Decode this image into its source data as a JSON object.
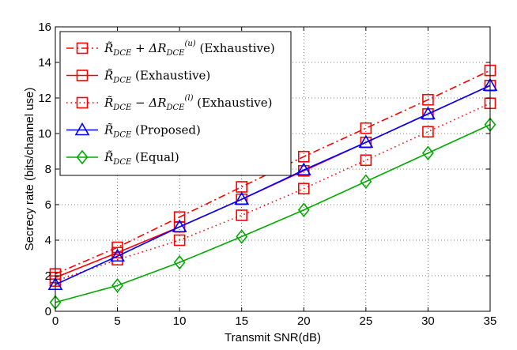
{
  "chart_data": {
    "type": "line",
    "xlabel": "Transmit SNR(dB)",
    "ylabel": "Secrecy rate (bits/channel use)",
    "x": [
      0,
      5,
      10,
      15,
      20,
      25,
      30,
      35
    ],
    "xlim": [
      0,
      35
    ],
    "ylim": [
      0,
      16
    ],
    "xticks": [
      "0",
      "5",
      "10",
      "15",
      "20",
      "25",
      "30",
      "35"
    ],
    "yticks": [
      "0",
      "2",
      "4",
      "6",
      "8",
      "10",
      "12",
      "14",
      "16"
    ],
    "grid": true,
    "legend_position": "top-left",
    "series": [
      {
        "name": "R̃_DCE + ΔR_DCE^(u) (Exhaustive)",
        "label_main": "R̃",
        "label_sub": "DCE",
        "label_op": " + ΔR",
        "label_sub2": "DCE",
        "label_sup": "(u)",
        "label_tail": " (Exhaustive)",
        "color": "#ff0000",
        "dash": "dashdot",
        "marker": "square",
        "values": [
          2.1,
          3.6,
          5.3,
          7.0,
          8.7,
          10.3,
          11.9,
          13.55
        ]
      },
      {
        "name": "R̃_DCE (Exhaustive)",
        "label_main": "R̃",
        "label_sub": "DCE",
        "label_tail": " (Exhaustive)",
        "color": "#ff0000",
        "dash": "solid",
        "marker": "square",
        "values": [
          1.9,
          3.3,
          4.75,
          6.3,
          7.9,
          9.5,
          11.1,
          12.7
        ]
      },
      {
        "name": "R̃_DCE − ΔR_DCE^(l) (Exhaustive)",
        "label_main": "R̃",
        "label_sub": "DCE",
        "label_op": " − ΔR",
        "label_sub2": "DCE",
        "label_sup": "(l)",
        "label_tail": " (Exhaustive)",
        "color": "#ff0000",
        "dash": "dotted",
        "marker": "square",
        "values": [
          1.7,
          2.9,
          4.0,
          5.4,
          6.9,
          8.5,
          10.1,
          11.7
        ]
      },
      {
        "name": "R̃_DCE (Proposed)",
        "label_main": "R̃",
        "label_sub": "DCE",
        "label_tail": " (Proposed)",
        "color": "#0000ff",
        "dash": "solid",
        "marker": "triangle",
        "values": [
          1.5,
          3.1,
          4.75,
          6.3,
          7.95,
          9.5,
          11.1,
          12.7
        ]
      },
      {
        "name": "R̃_DCE (Equal)",
        "label_main": "R̃",
        "label_sub": "DCE",
        "label_tail": " (Equal)",
        "color": "#00aa00",
        "dash": "solid",
        "marker": "diamond",
        "values": [
          0.5,
          1.45,
          2.75,
          4.2,
          5.7,
          7.3,
          8.9,
          10.5
        ]
      }
    ]
  }
}
